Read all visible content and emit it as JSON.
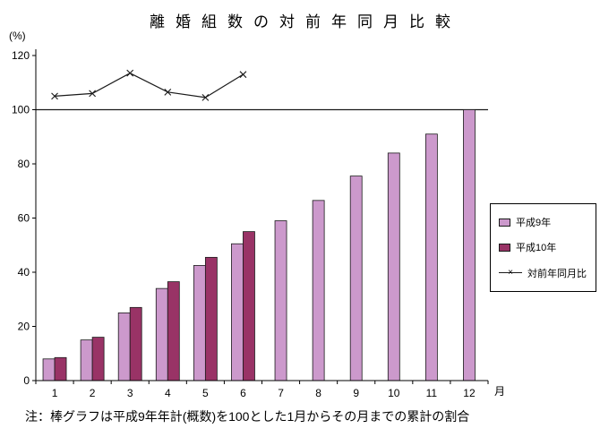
{
  "title": "離婚組数の対前年同月比較",
  "y_unit": "(%)",
  "x_unit": "月",
  "note": "注：棒グラフは平成9年年計(概数)を100とした1月からその月までの累計の割合",
  "chart_data": {
    "type": "bar",
    "title": "離婚組数の対前年同月比較",
    "categories": [
      "1",
      "2",
      "3",
      "4",
      "5",
      "6",
      "7",
      "8",
      "9",
      "10",
      "11",
      "12"
    ],
    "xlabel": "月",
    "ylabel": "(%)",
    "ylim": [
      0,
      120
    ],
    "yticks": [
      0,
      20,
      40,
      60,
      80,
      100,
      120
    ],
    "reference_line": 100,
    "grid": false,
    "legend_position": "right",
    "series": [
      {
        "name": "平成9年",
        "type": "bar",
        "color": "#cc99cc",
        "values": [
          8,
          15,
          25,
          34,
          42.5,
          50.5,
          59,
          66.5,
          75.5,
          84,
          91,
          100
        ]
      },
      {
        "name": "平成10年",
        "type": "bar",
        "color": "#993366",
        "values": [
          8.5,
          16,
          27,
          36.5,
          45.5,
          55
        ]
      },
      {
        "name": "対前年同月比",
        "type": "line",
        "color": "#1a1a1a",
        "marker": "x",
        "values": [
          105,
          106,
          113.5,
          106.5,
          104.5,
          113
        ]
      }
    ]
  }
}
